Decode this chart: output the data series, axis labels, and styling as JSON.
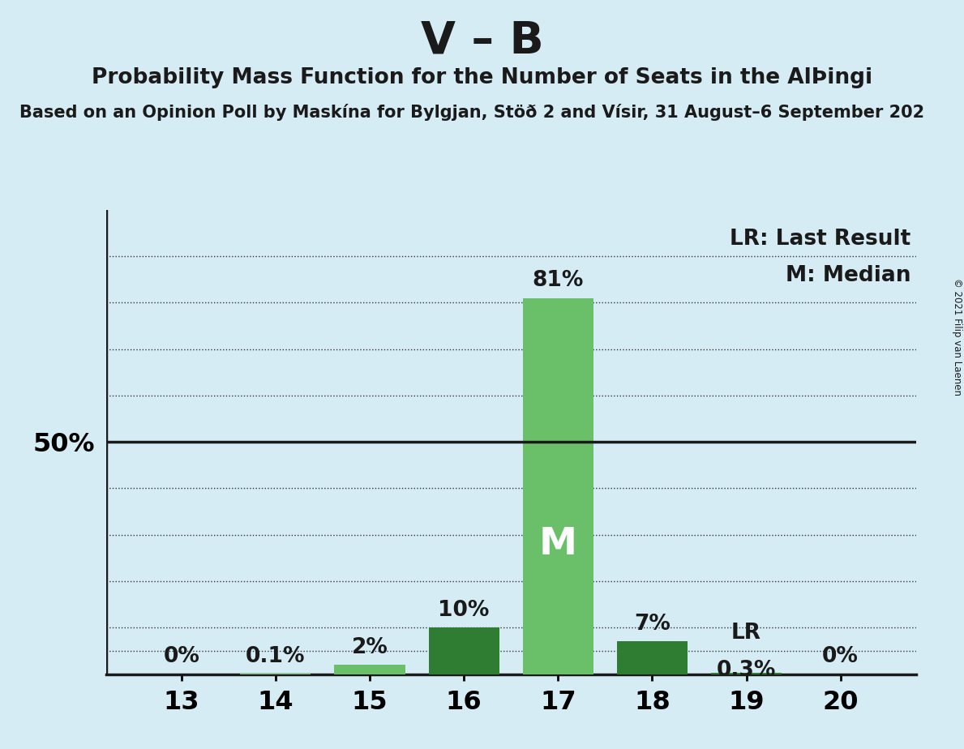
{
  "title": "V – B",
  "subtitle": "Probability Mass Function for the Number of Seats in the AlÞingi",
  "source": "Based on an Opinion Poll by Maskína for Bylgjan, Stöð 2 and Vísir, 31 August–6 September 202",
  "copyright": "© 2021 Filip van Laenen",
  "seats": [
    13,
    14,
    15,
    16,
    17,
    18,
    19,
    20
  ],
  "values": [
    0.0,
    0.1,
    2.0,
    10.0,
    81.0,
    7.0,
    0.3,
    0.0
  ],
  "bar_colors": [
    "#6abf69",
    "#6abf69",
    "#6abf69",
    "#2e7d32",
    "#6abf69",
    "#2e7d32",
    "#2e7d32",
    "#6abf69"
  ],
  "median_seat": 17,
  "lr_seat": 19,
  "pct_labels": [
    "0%",
    "0.1%",
    "2%",
    "10%",
    "81%",
    "7%",
    "0.3%",
    "0%"
  ],
  "background_color": "#d6ecf5",
  "title_fontsize": 40,
  "subtitle_fontsize": 19,
  "source_fontsize": 15,
  "legend_text_lr": "LR: Last Result",
  "legend_text_m": "M: Median",
  "ylabel_50": "50%",
  "ylim": [
    0,
    100
  ],
  "fifty_line": 50,
  "dotted_lines": [
    10,
    20,
    30,
    40,
    60,
    70,
    80,
    90
  ]
}
